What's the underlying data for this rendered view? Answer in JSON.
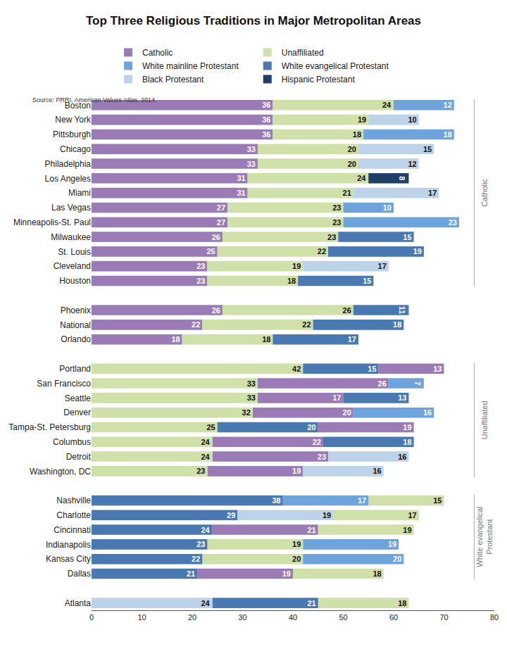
{
  "chart_data": {
    "type": "bar",
    "title": "Top Three Religious Traditions in Major Metropolitan Areas",
    "source": "Source: PRRI, American Values Atlas, 2014.",
    "orientation": "horizontal",
    "stacked": true,
    "data_labels": true,
    "grid": false,
    "legend": "top",
    "categories": [
      "Boston",
      "New York",
      "Pittsburgh",
      "Chicago",
      "Philadelphia",
      "Los Angeles",
      "Miami",
      "Las Vegas",
      "Minneapolis-St. Paul",
      "Milwaukee",
      "St. Louis",
      "Cleveland",
      "Houston",
      null,
      "Phoenix",
      "National",
      "Orlando",
      null,
      "Portland",
      "San Francisco",
      "Seattle",
      "Denver",
      "Tampa-St. Petersburg",
      "Columbus",
      "Detroit",
      "Washington, DC",
      null,
      "Nashville",
      "Charlotte",
      "Cincinnati",
      "Indianapolis",
      "Kansas City",
      "Dallas",
      null,
      "Atlanta"
    ],
    "series": [
      {
        "name": "Catholic",
        "color": "#9b7bb5",
        "values": [
          36,
          36,
          36,
          33,
          33,
          31,
          31,
          27,
          27,
          26,
          25,
          23,
          23,
          null,
          26,
          22,
          18,
          null,
          13,
          26,
          17,
          20,
          19,
          22,
          23,
          19,
          null,
          null,
          null,
          21,
          null,
          null,
          19,
          null,
          null
        ]
      },
      {
        "name": "Unaffiliated",
        "color": "#cfe0a8",
        "values": [
          24,
          19,
          18,
          20,
          20,
          24,
          21,
          23,
          23,
          23,
          22,
          19,
          18,
          null,
          26,
          22,
          18,
          null,
          42,
          33,
          33,
          32,
          25,
          24,
          24,
          23,
          null,
          15,
          17,
          19,
          19,
          20,
          18,
          null,
          18
        ]
      },
      {
        "name": "White mainline Protestant",
        "color": "#6fa3dc",
        "values": [
          12,
          null,
          18,
          null,
          null,
          null,
          null,
          10,
          23,
          null,
          null,
          null,
          null,
          null,
          null,
          null,
          null,
          null,
          null,
          7,
          null,
          16,
          null,
          null,
          null,
          null,
          null,
          17,
          null,
          null,
          19,
          20,
          null,
          null,
          null
        ]
      },
      {
        "name": "White evangelical Protestant",
        "color": "#4a78b0",
        "values": [
          null,
          null,
          null,
          null,
          null,
          null,
          null,
          null,
          null,
          15,
          19,
          null,
          15,
          null,
          11,
          18,
          17,
          null,
          15,
          null,
          13,
          null,
          20,
          18,
          null,
          null,
          null,
          38,
          29,
          24,
          23,
          22,
          21,
          null,
          21
        ]
      },
      {
        "name": "Black Protestant",
        "color": "#bcd3ea",
        "values": [
          null,
          10,
          null,
          15,
          12,
          null,
          17,
          null,
          null,
          null,
          null,
          17,
          null,
          null,
          null,
          null,
          null,
          null,
          null,
          null,
          null,
          null,
          null,
          null,
          16,
          16,
          null,
          null,
          19,
          null,
          null,
          null,
          null,
          null,
          24
        ]
      },
      {
        "name": "Hispanic Protestant",
        "color": "#1f3f66",
        "values": [
          null,
          null,
          null,
          null,
          null,
          8,
          null,
          null,
          null,
          null,
          null,
          null,
          null,
          null,
          null,
          null,
          null,
          null,
          null,
          null,
          null,
          null,
          null,
          null,
          null,
          null,
          null,
          null,
          null,
          null,
          null,
          null,
          null,
          null,
          null
        ]
      }
    ],
    "xlim": [
      0,
      80
    ],
    "xticks": [
      0,
      10,
      20,
      30,
      40,
      50,
      60,
      70,
      80
    ],
    "annotations": [
      {
        "text": "Catholic",
        "from": "Boston",
        "to": "Houston"
      },
      {
        "text": "Unaffiliated",
        "from": "Portland",
        "to": "Washington, DC"
      },
      {
        "text": "White evangelical\nProtestant",
        "from": "Nashville",
        "to": "Dallas"
      }
    ]
  }
}
